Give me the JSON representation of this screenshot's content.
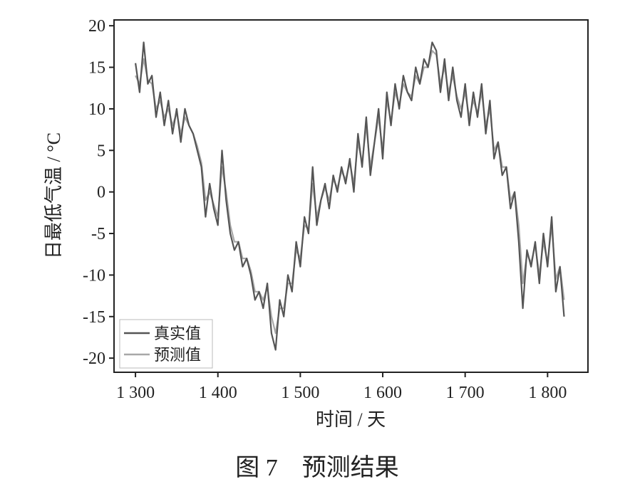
{
  "chart_data": {
    "type": "line",
    "title": "图 7　预测结果",
    "xlabel": "时间 / 天",
    "ylabel": "日最低气温 / °C",
    "x": [
      1300,
      1305,
      1310,
      1315,
      1320,
      1325,
      1330,
      1335,
      1340,
      1345,
      1350,
      1355,
      1360,
      1365,
      1370,
      1375,
      1380,
      1385,
      1390,
      1395,
      1400,
      1405,
      1410,
      1415,
      1420,
      1425,
      1430,
      1435,
      1440,
      1445,
      1450,
      1455,
      1460,
      1465,
      1470,
      1475,
      1480,
      1485,
      1490,
      1495,
      1500,
      1505,
      1510,
      1515,
      1520,
      1525,
      1530,
      1535,
      1540,
      1545,
      1550,
      1555,
      1560,
      1565,
      1570,
      1575,
      1580,
      1585,
      1590,
      1595,
      1600,
      1605,
      1610,
      1615,
      1620,
      1625,
      1630,
      1635,
      1640,
      1645,
      1650,
      1655,
      1660,
      1665,
      1670,
      1675,
      1680,
      1685,
      1690,
      1695,
      1700,
      1705,
      1710,
      1715,
      1720,
      1725,
      1730,
      1735,
      1740,
      1745,
      1750,
      1755,
      1760,
      1765,
      1770,
      1775,
      1780,
      1785,
      1790,
      1795,
      1800,
      1805,
      1810,
      1815,
      1820
    ],
    "series": [
      {
        "name": "真实值",
        "color": "#555555",
        "values": [
          15.5,
          12,
          18,
          13,
          14,
          9,
          12,
          8,
          11,
          7,
          10,
          6,
          10,
          8,
          7,
          5,
          3,
          -3,
          1,
          -2,
          -4,
          5,
          -1,
          -5,
          -7,
          -6,
          -9,
          -8,
          -10,
          -13,
          -12,
          -14,
          -11,
          -17,
          -19,
          -13,
          -15,
          -10,
          -12,
          -6,
          -9,
          -3,
          -5,
          3,
          -4,
          -1,
          1,
          -2,
          2,
          0,
          3,
          1,
          4,
          0,
          7,
          3,
          9,
          2,
          6,
          10,
          4,
          12,
          8,
          13,
          10,
          14,
          12,
          11,
          15,
          13,
          16,
          15,
          18,
          17,
          12,
          16,
          11,
          15,
          11,
          9,
          13,
          8,
          12,
          9,
          13,
          7,
          11,
          4,
          6,
          2,
          3,
          -2,
          0,
          -6,
          -14,
          -7,
          -9,
          -6,
          -11,
          -5,
          -9,
          -3,
          -12,
          -9,
          -15
        ]
      },
      {
        "name": "预测值",
        "color": "#a8a8a8",
        "values": [
          14,
          13,
          16,
          13.5,
          13,
          10,
          11,
          9,
          10,
          8,
          9.5,
          7,
          9,
          8,
          7,
          5.5,
          3.5,
          -1,
          0,
          -1.5,
          -3,
          3,
          0,
          -4,
          -6,
          -6,
          -8,
          -8,
          -9.5,
          -12,
          -12,
          -13,
          -11.5,
          -15,
          -17,
          -14,
          -14,
          -11,
          -11,
          -7,
          -8,
          -4,
          -4.5,
          1,
          -3,
          -1,
          0.5,
          -1,
          1.5,
          0.5,
          2.5,
          1.5,
          3.5,
          1,
          6,
          3.5,
          8,
          3,
          6,
          9,
          5,
          11,
          8.5,
          12,
          10.5,
          13,
          12,
          11.5,
          14,
          13,
          15,
          15,
          17,
          16.5,
          13,
          15,
          12,
          14,
          11.5,
          10,
          12,
          9,
          11,
          9.5,
          12,
          8,
          10,
          5,
          6,
          3,
          3,
          -1,
          0,
          -4,
          -11,
          -7.5,
          -8.5,
          -6.5,
          -10,
          -6,
          -8.5,
          -4,
          -10.5,
          -9,
          -13
        ]
      }
    ],
    "xlim": [
      1274,
      1849
    ],
    "xticks": [
      {
        "value": 1300,
        "label": "1 300"
      },
      {
        "value": 1400,
        "label": "1 400"
      },
      {
        "value": 1500,
        "label": "1 500"
      },
      {
        "value": 1600,
        "label": "1 600"
      },
      {
        "value": 1700,
        "label": "1 700"
      },
      {
        "value": 1800,
        "label": "1 800"
      }
    ],
    "ylim": [
      -21.7,
      20.7
    ],
    "yticks": [
      -20,
      -15,
      -10,
      -5,
      0,
      5,
      10,
      15,
      20
    ],
    "legend": "lower left"
  }
}
